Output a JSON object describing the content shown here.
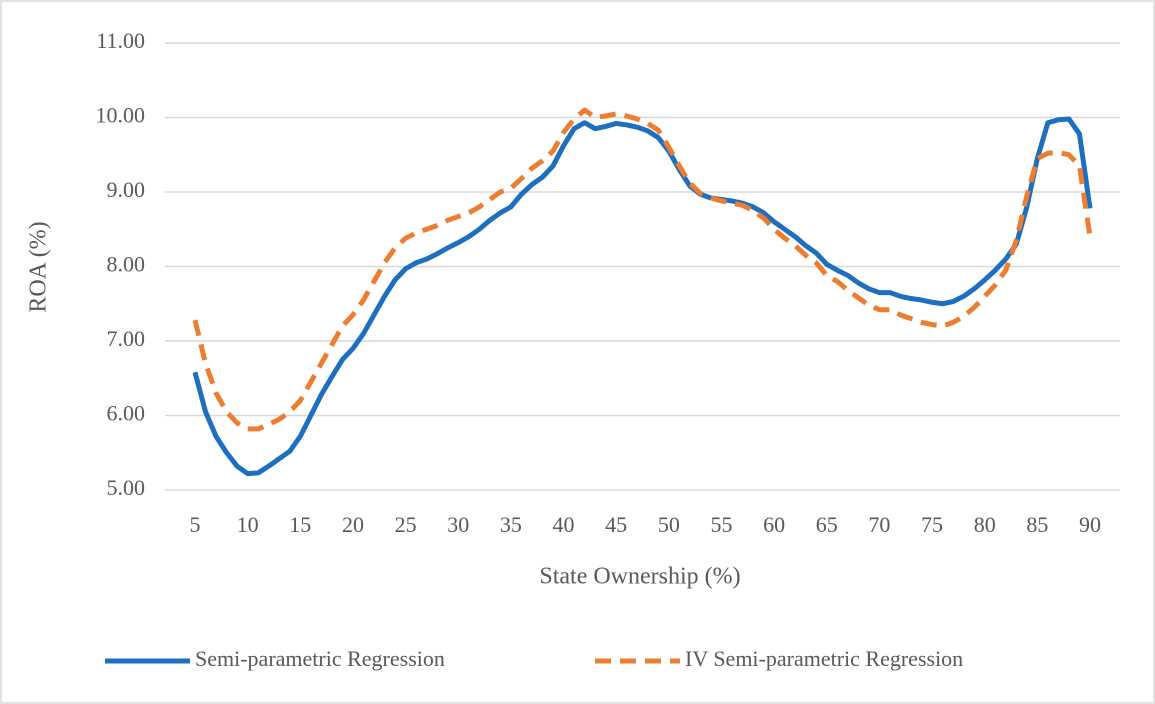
{
  "chart_data": {
    "type": "line",
    "xlabel": "State Ownership (%)",
    "ylabel": "ROA (%)",
    "x": [
      5,
      6,
      7,
      8,
      9,
      10,
      11,
      12,
      13,
      14,
      15,
      16,
      17,
      18,
      19,
      20,
      21,
      22,
      23,
      24,
      25,
      26,
      27,
      28,
      29,
      30,
      31,
      32,
      33,
      34,
      35,
      36,
      37,
      38,
      39,
      40,
      41,
      42,
      43,
      44,
      45,
      46,
      47,
      48,
      49,
      50,
      51,
      52,
      53,
      54,
      55,
      56,
      57,
      58,
      59,
      60,
      61,
      62,
      63,
      64,
      65,
      66,
      67,
      68,
      69,
      70,
      71,
      72,
      73,
      74,
      75,
      76,
      77,
      78,
      79,
      80,
      81,
      82,
      83,
      84,
      85,
      86,
      87,
      88,
      89,
      90
    ],
    "series": [
      {
        "name": "Semi-parametric Regression",
        "color": "#1f6fc0",
        "dash": false,
        "values": [
          6.58,
          6.05,
          5.72,
          5.5,
          5.32,
          5.22,
          5.23,
          5.32,
          5.42,
          5.52,
          5.72,
          6.0,
          6.28,
          6.52,
          6.75,
          6.9,
          7.1,
          7.35,
          7.6,
          7.82,
          7.97,
          8.05,
          8.1,
          8.17,
          8.25,
          8.32,
          8.4,
          8.5,
          8.62,
          8.72,
          8.8,
          8.97,
          9.1,
          9.2,
          9.35,
          9.62,
          9.85,
          9.93,
          9.85,
          9.88,
          9.92,
          9.9,
          9.87,
          9.82,
          9.73,
          9.55,
          9.3,
          9.08,
          8.97,
          8.92,
          8.9,
          8.88,
          8.85,
          8.8,
          8.72,
          8.6,
          8.5,
          8.4,
          8.28,
          8.18,
          8.03,
          7.95,
          7.88,
          7.78,
          7.7,
          7.65,
          7.65,
          7.6,
          7.57,
          7.55,
          7.52,
          7.5,
          7.53,
          7.6,
          7.7,
          7.82,
          7.95,
          8.1,
          8.3,
          8.8,
          9.45,
          9.93,
          9.97,
          9.98,
          9.78,
          8.78
        ]
      },
      {
        "name": "IV Semi-parametric Regression",
        "color": "#ed7d31",
        "dash": true,
        "values": [
          7.28,
          6.7,
          6.3,
          6.05,
          5.9,
          5.82,
          5.82,
          5.88,
          5.95,
          6.05,
          6.2,
          6.45,
          6.7,
          6.95,
          7.2,
          7.35,
          7.55,
          7.8,
          8.05,
          8.25,
          8.38,
          8.45,
          8.5,
          8.55,
          8.62,
          8.67,
          8.72,
          8.8,
          8.9,
          9.0,
          9.05,
          9.18,
          9.32,
          9.42,
          9.55,
          9.8,
          9.98,
          10.1,
          10.0,
          10.02,
          10.05,
          10.02,
          9.98,
          9.92,
          9.83,
          9.6,
          9.35,
          9.12,
          8.98,
          8.92,
          8.88,
          8.85,
          8.82,
          8.75,
          8.65,
          8.5,
          8.38,
          8.28,
          8.15,
          8.05,
          7.88,
          7.8,
          7.68,
          7.58,
          7.48,
          7.42,
          7.42,
          7.35,
          7.3,
          7.25,
          7.22,
          7.2,
          7.25,
          7.33,
          7.45,
          7.6,
          7.75,
          7.95,
          8.35,
          8.95,
          9.45,
          9.52,
          9.53,
          9.5,
          9.35,
          8.4
        ]
      }
    ],
    "xlim": [
      5,
      90
    ],
    "xticks": [
      5,
      10,
      15,
      20,
      25,
      30,
      35,
      40,
      45,
      50,
      55,
      60,
      65,
      70,
      75,
      80,
      85,
      90
    ],
    "ylim": [
      5,
      11
    ],
    "yticks": [
      {
        "value": 5,
        "label": "5.00"
      },
      {
        "value": 6,
        "label": "6.00"
      },
      {
        "value": 7,
        "label": "7.00"
      },
      {
        "value": 8,
        "label": "8.00"
      },
      {
        "value": 9,
        "label": "9.00"
      },
      {
        "value": 10,
        "label": "10.00"
      },
      {
        "value": 11,
        "label": "11.00"
      }
    ],
    "grid": true,
    "legend": "bottom"
  }
}
